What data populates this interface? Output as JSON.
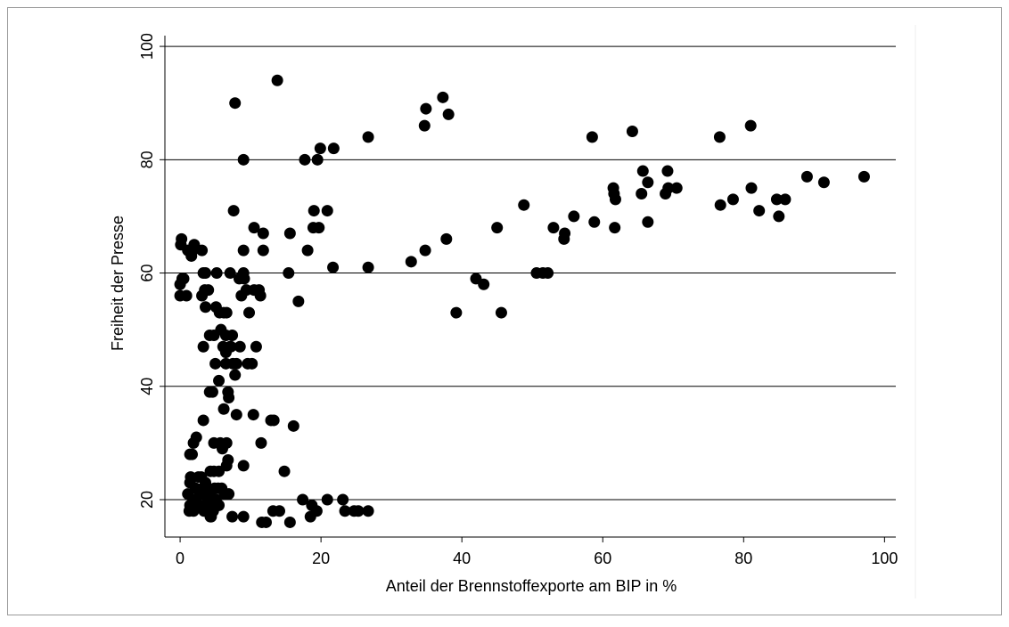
{
  "chart_data": {
    "type": "scatter",
    "x_label": "Anteil der Brennstoffexporte am BIP in %",
    "y_label": "Freiheit der Presse",
    "color": "#000000",
    "grid": true,
    "xlim": [
      -2.16,
      101.6
    ],
    "ylim": [
      13.4,
      101.9
    ],
    "xticks": [
      0,
      20,
      40,
      60,
      80,
      100
    ],
    "yticks": [
      20,
      40,
      60,
      80,
      100
    ],
    "x": [
      13.8,
      7.8,
      37.3,
      34.9,
      38.1,
      34.7,
      9,
      17.7,
      19.5,
      19.9,
      21.8,
      26.7,
      58.5,
      64.2,
      76.6,
      81,
      65.7,
      69.2,
      61.5,
      61.6,
      61.8,
      65.5,
      66.4,
      68.9,
      69.3,
      70.5,
      76.7,
      78.5,
      81.1,
      82.2,
      84.7,
      85,
      85.9,
      89,
      91.4,
      97.1,
      61.7,
      58.8,
      66.4,
      55.9,
      53,
      54.5,
      54.6,
      48.8,
      45,
      37.8,
      34.8,
      32.8,
      26.7,
      21.7,
      42,
      43.1,
      39.2,
      45.6,
      50.6,
      51.5,
      52.2,
      7.6,
      19,
      20.9,
      10.5,
      11.8,
      15.6,
      18.9,
      19.7,
      18.1,
      11.8,
      15.4,
      16.8,
      0.2,
      0.1,
      1.1,
      1.8,
      2,
      1.6,
      3.1,
      0.5,
      0,
      0.3,
      0,
      0.9,
      3.3,
      3.6,
      3.5,
      4,
      3.1,
      3.6,
      5.2,
      5.1,
      5.6,
      6.2,
      6.6,
      7.1,
      8.4,
      9,
      9.1,
      8.7,
      9.4,
      9.8,
      10.5,
      11.2,
      11.4,
      9,
      4.2,
      4.8,
      5.8,
      6.5,
      7.1,
      7.4,
      3.3,
      5,
      6.1,
      7.2,
      6.5,
      7.5,
      8,
      8.5,
      9.6,
      10.2,
      10.8,
      6.5,
      7.8,
      6.8,
      5.5,
      4.2,
      4.6,
      6.9,
      6.2,
      3.3,
      8,
      10.4,
      12.9,
      13.3,
      16.1,
      11.5,
      14.8,
      9,
      1.9,
      2.3,
      1.4,
      1.7,
      4.8,
      5.7,
      6.6,
      6,
      5.5,
      6.8,
      6.6,
      4.3,
      4.8,
      3,
      1.5,
      1.1,
      1.4,
      2.2,
      2.6,
      3.2,
      3.6,
      4,
      4.9,
      5.4,
      5.9,
      6.3,
      6.9,
      2.1,
      2.8,
      3.4,
      3.9,
      4.3,
      4.6,
      5.1,
      5.5,
      1.4,
      1.9,
      1.3,
      2.7,
      3.4,
      3.7,
      4.1,
      4.4,
      4.7,
      5,
      4.3,
      7.4,
      9,
      11.6,
      12.2,
      13.2,
      14.1,
      15.6,
      17.4,
      18.7,
      18.5,
      19.4,
      20.9,
      23.1,
      23.4,
      24.7,
      25.3,
      26.7
    ],
    "values": [
      94,
      90,
      91,
      89,
      88,
      86,
      80,
      80,
      80,
      82,
      82,
      84,
      84,
      85,
      84,
      86,
      78,
      78,
      75,
      74,
      73,
      74,
      76,
      74,
      75,
      75,
      72,
      73,
      75,
      71,
      73,
      70,
      73,
      77,
      76,
      77,
      68,
      69,
      69,
      70,
      68,
      66,
      67,
      72,
      68,
      66,
      64,
      62,
      61,
      61,
      59,
      58,
      53,
      53,
      60,
      60,
      60,
      71,
      71,
      71,
      68,
      67,
      67,
      68,
      68,
      64,
      64,
      60,
      55,
      66,
      65,
      64,
      64,
      65,
      63,
      64,
      59,
      58,
      59,
      56,
      56,
      60,
      60,
      57,
      57,
      56,
      54,
      60,
      54,
      53,
      53,
      53,
      60,
      59,
      60,
      59,
      56,
      57,
      53,
      57,
      57,
      56,
      64,
      49,
      49,
      50,
      49,
      47,
      49,
      47,
      44,
      47,
      47,
      44,
      44,
      44,
      47,
      44,
      44,
      47,
      46,
      42,
      39,
      41,
      39,
      39,
      38,
      36,
      34,
      35,
      35,
      34,
      34,
      33,
      30,
      25,
      26,
      30,
      31,
      28,
      28,
      30,
      30,
      30,
      29,
      25,
      27,
      26,
      25,
      25,
      24,
      24,
      21,
      23,
      22,
      24,
      22,
      23,
      22,
      22,
      22,
      22,
      21,
      21,
      20,
      21,
      21,
      20,
      21,
      20,
      20,
      19,
      19,
      18,
      18,
      19,
      18,
      19,
      18,
      17,
      18,
      19,
      17,
      17,
      17,
      16,
      16,
      18,
      18,
      16,
      20,
      19,
      17,
      18,
      20,
      20,
      18,
      18,
      18,
      18
    ]
  }
}
